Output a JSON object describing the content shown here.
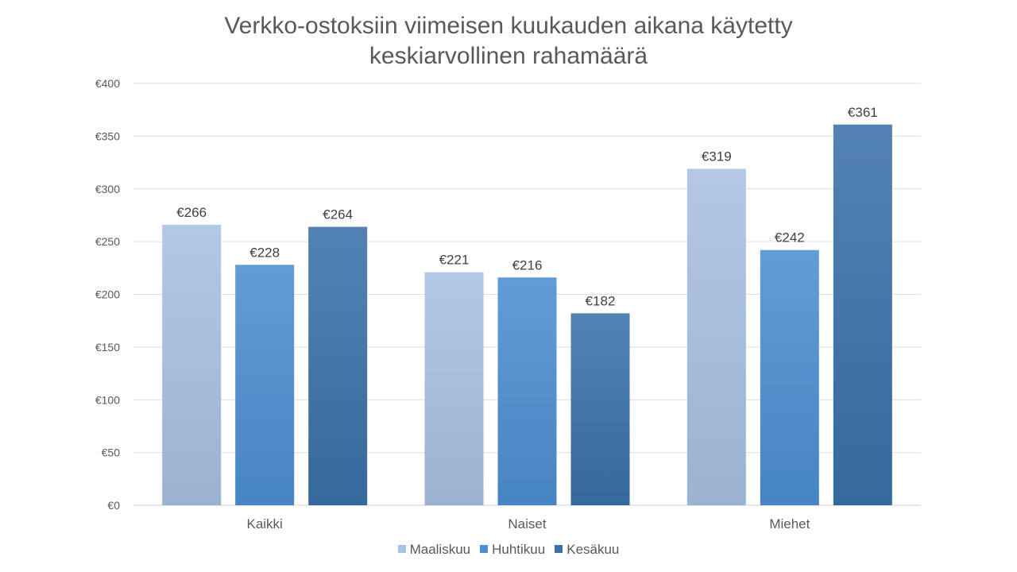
{
  "chart_data": {
    "type": "bar",
    "title_lines": [
      "Verkko-ostoksiin viimeisen kuukauden aikana käytetty",
      "keskiarvollinen rahamäärä"
    ],
    "categories": [
      "Kaikki",
      "Naiset",
      "Miehet"
    ],
    "series": [
      {
        "name": "Maaliskuu",
        "values": [
          266,
          221,
          319
        ],
        "color": "#a9c1e3"
      },
      {
        "name": "Huhtikuu",
        "values": [
          228,
          216,
          242
        ],
        "color": "#4d8fd3"
      },
      {
        "name": "Kesäkuu",
        "values": [
          264,
          182,
          361
        ],
        "color": "#3a72a8"
      }
    ],
    "value_prefix": "€",
    "ylim": [
      0,
      400
    ],
    "yticks": [
      0,
      50,
      100,
      150,
      200,
      250,
      300,
      350,
      400
    ],
    "grid": true,
    "legend_position": "bottom",
    "xlabel": "",
    "ylabel": ""
  }
}
